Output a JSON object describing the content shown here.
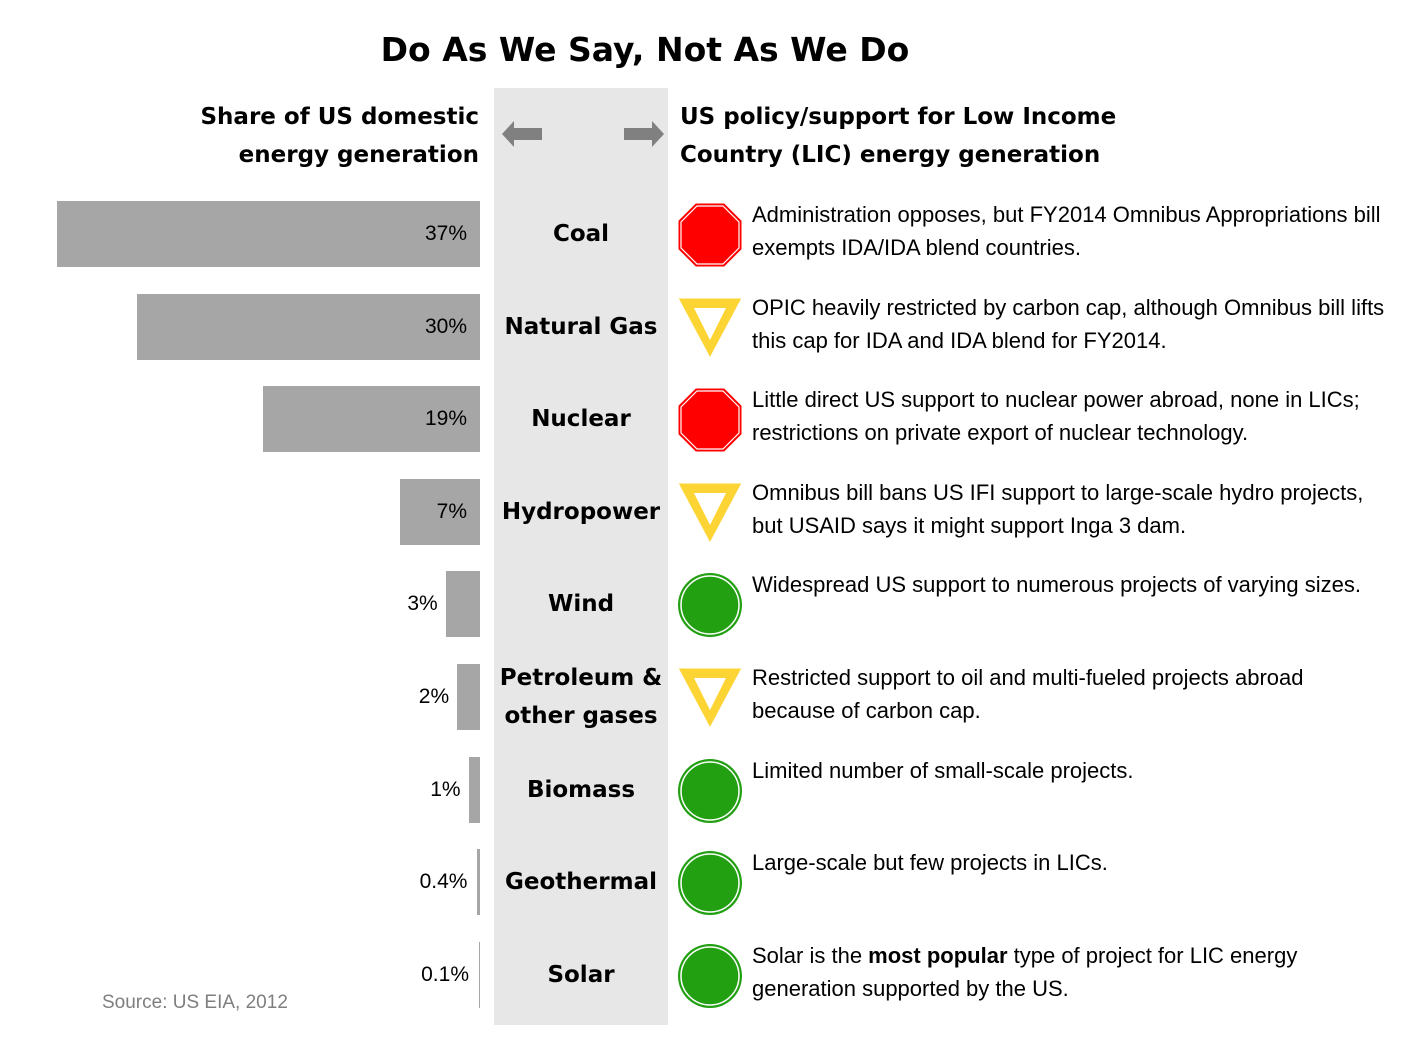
{
  "title": "Do As We Say, Not As We Do",
  "left_header": [
    "Share of US domestic",
    "energy generation"
  ],
  "right_header": [
    "US policy/support for Low Income",
    "Country (LIC) energy generation"
  ],
  "source": "Source: US EIA, 2012",
  "colors": {
    "bar": "#a6a6a6",
    "band": "#e7e7e7",
    "stop": "#ff0000",
    "caution": "#fcd535",
    "go": "#22a012",
    "arrow": "#808080"
  },
  "chart_data": {
    "type": "bar",
    "orientation": "horizontal",
    "categories": [
      "Coal",
      "Natural Gas",
      "Nuclear",
      "Hydropower",
      "Wind",
      "Petroleum & other gases",
      "Biomass",
      "Geothermal",
      "Solar"
    ],
    "values": [
      37,
      30,
      19,
      7,
      3,
      2,
      1,
      0.4,
      0.1
    ],
    "labels": [
      "37%",
      "30%",
      "19%",
      "7%",
      "3%",
      "2%",
      "1%",
      "0.4%",
      "0.1%"
    ],
    "unit": "%"
  },
  "rows": [
    {
      "category": [
        "Coal"
      ],
      "status": "stop-sign",
      "desc": [
        "Administration opposes, but FY2014 Omnibus Appropriations bill exempts IDA/IDA blend countries."
      ]
    },
    {
      "category": [
        "Natural Gas"
      ],
      "status": "yield-sign",
      "desc": [
        "OPIC heavily restricted by carbon cap, although Omnibus bill lifts this cap for IDA and IDA blend for FY2014."
      ]
    },
    {
      "category": [
        "Nuclear"
      ],
      "status": "stop-sign",
      "desc": [
        "Little direct US support to nuclear power abroad, none in LICs; restrictions on private export of nuclear technology."
      ]
    },
    {
      "category": [
        "Hydropower"
      ],
      "status": "yield-sign",
      "desc": [
        "Omnibus bill bans US IFI support to large-scale hydro projects, but USAID says it might support Inga 3 dam."
      ]
    },
    {
      "category": [
        "Wind"
      ],
      "status": "green-circle",
      "desc": [
        "Widespread US support to numerous projects of varying sizes."
      ]
    },
    {
      "category": [
        "Petroleum &",
        "other gases"
      ],
      "status": "yield-sign",
      "desc": [
        "Restricted support to oil and multi-fueled projects abroad because of carbon cap."
      ]
    },
    {
      "category": [
        "Biomass"
      ],
      "status": "green-circle",
      "desc": [
        "Limited number of small-scale projects."
      ]
    },
    {
      "category": [
        "Geothermal"
      ],
      "status": "green-circle",
      "desc": [
        "Large-scale but few projects in LICs."
      ]
    },
    {
      "category": [
        "Solar"
      ],
      "status": "green-circle",
      "desc": [
        "Solar is the ",
        "most popular",
        " type of project for LIC energy generation supported by the US."
      ]
    }
  ]
}
